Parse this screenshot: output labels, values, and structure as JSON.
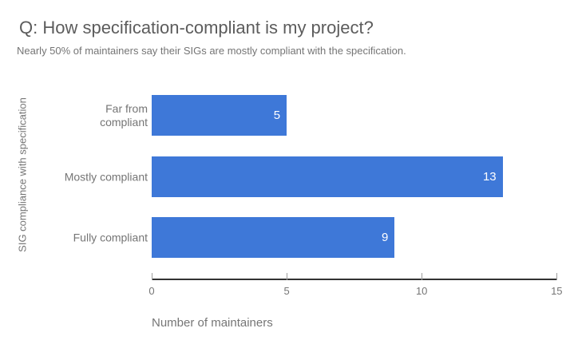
{
  "title": "Q: How specification-compliant is my project?",
  "subtitle": "Nearly 50% of maintainers say their SIGs are mostly compliant with the specification.",
  "chart_data": {
    "type": "bar",
    "orientation": "horizontal",
    "title": "Q: How specification-compliant is my project?",
    "subtitle": "Nearly 50% of maintainers say their SIGs are mostly compliant with the specification.",
    "categories": [
      "Far from compliant",
      "Mostly compliant",
      "Fully compliant"
    ],
    "values": [
      5,
      13,
      9
    ],
    "xlabel": "Number of maintainers",
    "ylabel": "SIG compliance with specification",
    "xlim": [
      0,
      15
    ],
    "xticks": [
      "0",
      "5",
      "10",
      "15"
    ],
    "grid": false,
    "legend": "none",
    "bar_color": "#3e78d8",
    "value_label_color": "#ffffff",
    "value_labels_inside_bar_end": true
  }
}
